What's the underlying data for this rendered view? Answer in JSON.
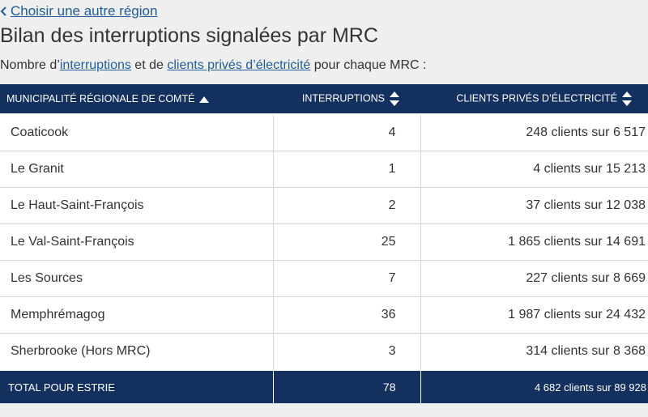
{
  "back_link": {
    "label": "Choisir une autre région"
  },
  "title": "Bilan des interruptions signalées par MRC",
  "intro": {
    "part1": "Nombre d’",
    "link1": "interruptions",
    "part2": " et de ",
    "link2": "clients privés d’électricité",
    "part3": " pour chaque MRC :"
  },
  "table": {
    "headers": {
      "mrc": "Municipalité régionale de comté",
      "interruptions": "Interruptions",
      "clients": "Clients privés d’électricité"
    },
    "rows": [
      {
        "mrc": "Coaticook",
        "interruptions": "4",
        "clients": "248 clients sur 6 517"
      },
      {
        "mrc": "Le Granit",
        "interruptions": "1",
        "clients": "4 clients sur 15 213"
      },
      {
        "mrc": "Le Haut-Saint-François",
        "interruptions": "2",
        "clients": "37 clients sur 12 038"
      },
      {
        "mrc": "Le Val-Saint-François",
        "interruptions": "25",
        "clients": "1 865 clients sur 14 691"
      },
      {
        "mrc": "Les Sources",
        "interruptions": "7",
        "clients": "227 clients sur 8 669"
      },
      {
        "mrc": "Memphrémagog",
        "interruptions": "36",
        "clients": "1 987 clients sur 24 432"
      },
      {
        "mrc": "Sherbrooke (Hors MRC)",
        "interruptions": "3",
        "clients": "314 clients sur 8 368"
      }
    ],
    "total": {
      "label": "Total pour Estrie",
      "interruptions": "78",
      "clients": "4 682 clients sur 89 928"
    }
  },
  "colors": {
    "header_bg": "#13305e",
    "link": "#1f5d9c",
    "page_bg": "#efefef"
  },
  "icons": {
    "back": "chevron-left-icon",
    "sort_active": "sort-ascending-icon",
    "sort_idle": "sort-updown-icon"
  }
}
